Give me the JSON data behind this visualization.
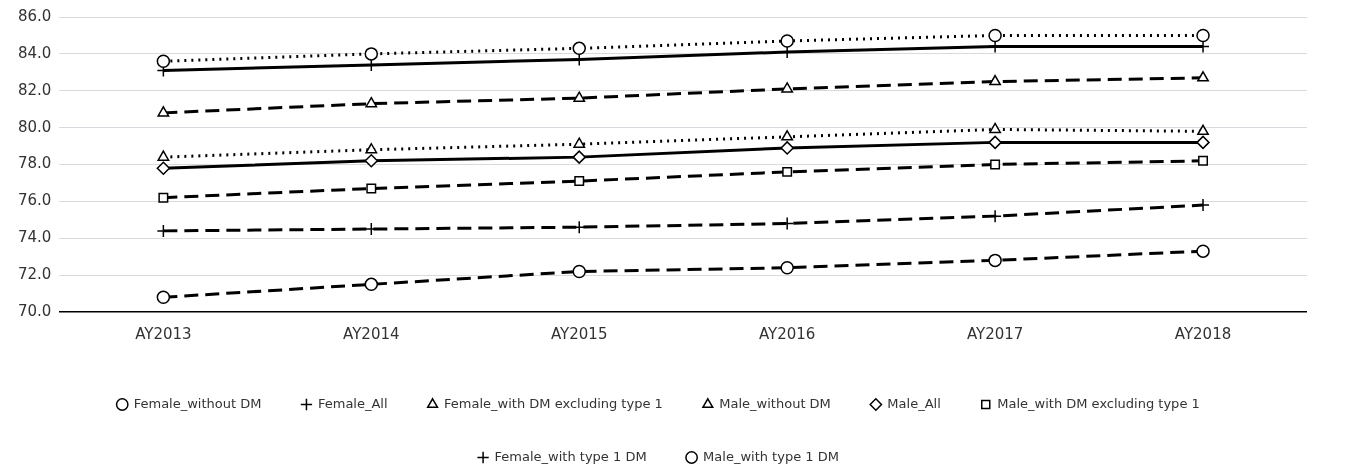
{
  "chart_data": {
    "type": "line",
    "categories": [
      "AY2013",
      "AY2014",
      "AY2015",
      "AY2016",
      "AY2017",
      "AY2018"
    ],
    "ylim": [
      70,
      86
    ],
    "yticks": [
      {
        "value": 70,
        "label": "70.0"
      },
      {
        "value": 72,
        "label": "72.0"
      },
      {
        "value": 74,
        "label": "74.0"
      },
      {
        "value": 76,
        "label": "76.0"
      },
      {
        "value": 78,
        "label": "78.0"
      },
      {
        "value": 80,
        "label": "80.0"
      },
      {
        "value": 82,
        "label": "82.0"
      },
      {
        "value": 84,
        "label": "84.0"
      },
      {
        "value": 86,
        "label": "86.0"
      }
    ],
    "grid": "y",
    "legend": "bottom",
    "series": [
      {
        "name": "Female_without DM",
        "color": "#000000",
        "marker": "circle",
        "line_style": "dotted",
        "values": [
          83.6,
          84.0,
          84.3,
          84.7,
          85.0,
          85.0
        ]
      },
      {
        "name": "Female_All",
        "color": "#000000",
        "marker": "cross",
        "line_style": "solid",
        "values": [
          83.1,
          83.4,
          83.7,
          84.1,
          84.4,
          84.4
        ]
      },
      {
        "name": "Female_with DM excluding type 1",
        "color": "#000000",
        "marker": "triangle",
        "line_style": "dashed",
        "values": [
          80.8,
          81.3,
          81.6,
          82.1,
          82.5,
          82.7
        ]
      },
      {
        "name": "Male_without DM",
        "color": "#000000",
        "marker": "triangle",
        "line_style": "dotted",
        "values": [
          78.4,
          78.8,
          79.1,
          79.5,
          79.9,
          79.8
        ]
      },
      {
        "name": "Male_All",
        "color": "#000000",
        "marker": "diamond",
        "line_style": "solid",
        "values": [
          77.8,
          78.2,
          78.4,
          78.9,
          79.2,
          79.2
        ]
      },
      {
        "name": "Male_with DM excluding type 1",
        "color": "#000000",
        "marker": "square",
        "line_style": "dashed",
        "values": [
          76.2,
          76.7,
          77.1,
          77.6,
          78.0,
          78.2
        ]
      },
      {
        "name": "Female_with type 1 DM",
        "color": "#000000",
        "marker": "cross",
        "line_style": "dashed",
        "values": [
          74.4,
          74.5,
          74.6,
          74.8,
          75.2,
          75.8
        ]
      },
      {
        "name": "Male_with type 1 DM",
        "color": "#000000",
        "marker": "circle",
        "line_style": "dashed",
        "values": [
          70.8,
          71.5,
          72.2,
          72.4,
          72.8,
          73.3
        ]
      }
    ]
  }
}
